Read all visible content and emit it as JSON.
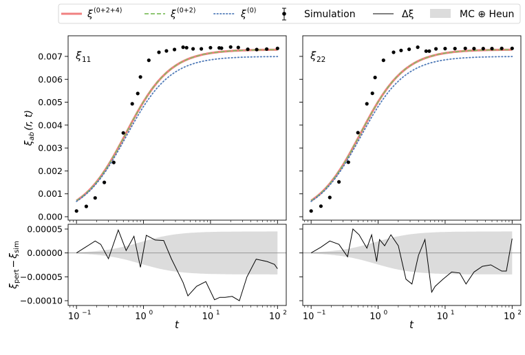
{
  "legend": {
    "placement": "top, outside panels",
    "entries": [
      {
        "label": "ξ",
        "sup": "(0+2+4)",
        "kind": "line",
        "color": "#f08080",
        "dash": "solid"
      },
      {
        "label": "ξ",
        "sup": "(0+2)",
        "kind": "line",
        "color": "#7fbf5f",
        "dash": "dashed"
      },
      {
        "label": "ξ",
        "sup": "(0)",
        "kind": "line",
        "color": "#4e79b7",
        "dash": "dotted"
      },
      {
        "label": "Simulation",
        "kind": "errorbar-point",
        "color": "#000000"
      },
      {
        "label": "Δξ",
        "kind": "line",
        "color": "#000000",
        "dash": "solid"
      },
      {
        "label": "MC ⊕ Heun",
        "kind": "band",
        "color": "#dcdcdc"
      }
    ]
  },
  "chart_data": [
    {
      "type": "line",
      "panel_label": "ξ11",
      "panel_label_main": "ξ",
      "panel_label_sub": "11",
      "ylabel_main": "ξ",
      "ylabel_sub": "ab",
      "ylabel_rest": "(r, t)",
      "xscale": "log",
      "xlim": [
        0.075,
        135
      ],
      "ylim": [
        -0.00015,
        0.0079
      ],
      "yticks": [
        0.0,
        0.001,
        0.002,
        0.003,
        0.004,
        0.005,
        0.006,
        0.007
      ],
      "ytick_labels": [
        "0.000",
        "0.001",
        "0.002",
        "0.003",
        "0.004",
        "0.005",
        "0.006",
        "0.007"
      ],
      "show_ytick_labels": true,
      "model": {
        "xi0_plateau": 0.007,
        "full_plateau": 0.0073,
        "t_center": 0.55,
        "logistic_width": 0.33
      },
      "simulation": {
        "t": [
          0.1,
          0.14,
          0.19,
          0.26,
          0.36,
          0.5,
          0.68,
          0.82,
          0.9,
          1.2,
          1.7,
          2.2,
          2.9,
          3.9,
          4.4,
          5.5,
          7.3,
          10,
          13.5,
          14.6,
          20,
          26,
          36,
          49,
          69,
          100
        ],
        "y": [
          0.00025,
          0.00045,
          0.00082,
          0.0015,
          0.00237,
          0.00366,
          0.00493,
          0.00538,
          0.0061,
          0.00683,
          0.00718,
          0.00724,
          0.0073,
          0.0074,
          0.00738,
          0.00733,
          0.00733,
          0.00738,
          0.00737,
          0.00736,
          0.00741,
          0.00739,
          0.00731,
          0.0073,
          0.00732,
          0.00735
        ]
      }
    },
    {
      "type": "line",
      "panel_label": "ξ22",
      "panel_label_main": "ξ",
      "panel_label_sub": "22",
      "xscale": "log",
      "xlim": [
        0.075,
        135
      ],
      "ylim": [
        -0.00015,
        0.0079
      ],
      "yticks": [
        0.0,
        0.001,
        0.002,
        0.003,
        0.004,
        0.005,
        0.006,
        0.007
      ],
      "show_ytick_labels": false,
      "model": {
        "xi0_plateau": 0.007,
        "full_plateau": 0.0073,
        "t_center": 0.55,
        "logistic_width": 0.33
      },
      "simulation": {
        "t": [
          0.1,
          0.14,
          0.19,
          0.26,
          0.36,
          0.5,
          0.68,
          0.82,
          0.9,
          1.2,
          1.7,
          2.2,
          2.9,
          3.9,
          5.2,
          5.8,
          7.3,
          10,
          14,
          20,
          27,
          37,
          50,
          70,
          100
        ],
        "y": [
          0.00025,
          0.00046,
          0.00084,
          0.00152,
          0.00238,
          0.00367,
          0.00493,
          0.00539,
          0.00608,
          0.00683,
          0.00718,
          0.00726,
          0.00731,
          0.0074,
          0.00723,
          0.00723,
          0.00733,
          0.00734,
          0.00734,
          0.00735,
          0.00734,
          0.00734,
          0.00734,
          0.00735,
          0.00735
        ]
      }
    },
    {
      "type": "line",
      "xlabel": "t",
      "ylabel_main": "ξ",
      "ylabel_sub_left": "pert",
      "ylabel_sub_right": "sim",
      "xscale": "log",
      "xlim": [
        0.075,
        135
      ],
      "xticks": [
        0.1,
        1,
        10,
        100
      ],
      "xtick_base": "10",
      "xtick_exps": [
        "−1",
        "0",
        "1",
        "2"
      ],
      "ylim": [
        -0.00011,
        6e-05
      ],
      "yticks": [
        5e-05,
        0.0,
        -5e-05,
        -0.0001
      ],
      "ytick_labels": [
        "0.00005",
        "0.00000",
        "−0.00005",
        "−0.00010"
      ],
      "show_ytick_labels": true,
      "zero_line": true,
      "band": {
        "half_width": 4.5e-05,
        "t_rise_center": 0.9,
        "log_width": 0.28
      },
      "delta_xi": {
        "t": [
          0.1,
          0.14,
          0.19,
          0.23,
          0.3,
          0.42,
          0.55,
          0.72,
          0.9,
          1.1,
          1.5,
          2.0,
          2.6,
          3.9,
          4.6,
          6.2,
          8.5,
          11.5,
          13.8,
          16.5,
          21,
          27,
          35,
          48,
          70,
          90,
          100
        ],
        "y": [
          0.0,
          1.3e-05,
          2.5e-05,
          1.8e-05,
          -1.2e-05,
          4.8e-05,
          5e-06,
          3.5e-05,
          -3e-05,
          3.7e-05,
          2.7e-05,
          2.6e-05,
          -1.2e-05,
          -6.2e-05,
          -9e-05,
          -7e-05,
          -6e-05,
          -9.8e-05,
          -9.3e-05,
          -9.3e-05,
          -9.1e-05,
          -0.0001,
          -5e-05,
          -1.3e-05,
          -1.8e-05,
          -2.4e-05,
          -3.3e-05
        ]
      }
    },
    {
      "type": "line",
      "xlabel": "t",
      "xscale": "log",
      "xlim": [
        0.075,
        135
      ],
      "xticks": [
        0.1,
        1,
        10,
        100
      ],
      "xtick_base": "10",
      "xtick_exps": [
        "−1",
        "0",
        "1",
        "2"
      ],
      "ylim": [
        -0.00011,
        6e-05
      ],
      "yticks": [
        5e-05,
        0.0,
        -5e-05,
        -0.0001
      ],
      "show_ytick_labels": false,
      "zero_line": true,
      "band": {
        "half_width": 4.5e-05,
        "t_rise_center": 0.9,
        "log_width": 0.28
      },
      "delta_xi": {
        "t": [
          0.1,
          0.14,
          0.19,
          0.26,
          0.35,
          0.42,
          0.52,
          0.68,
          0.8,
          0.95,
          1.05,
          1.25,
          1.55,
          2.0,
          2.6,
          3.2,
          4.0,
          5.0,
          6.3,
          7.1,
          9.3,
          12.5,
          16.5,
          20.5,
          27,
          36,
          48,
          70,
          82,
          100
        ],
        "y": [
          0.0,
          1.2e-05,
          2.5e-05,
          1.8e-05,
          -8e-06,
          5e-05,
          3.8e-05,
          1e-05,
          3.8e-05,
          -1.8e-05,
          2.8e-05,
          1.5e-05,
          3.8e-05,
          1.5e-05,
          -5.5e-05,
          -6.5e-05,
          -5e-06,
          2.8e-05,
          -8.2e-05,
          -7e-05,
          -5.5e-05,
          -4e-05,
          -4.2e-05,
          -6.5e-05,
          -4e-05,
          -2.8e-05,
          -2.5e-05,
          -3.8e-05,
          -3.8e-05,
          3e-05
        ]
      }
    }
  ]
}
